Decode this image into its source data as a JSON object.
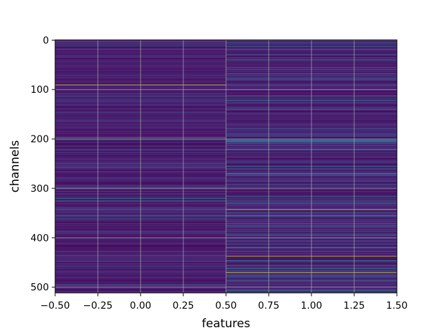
{
  "chart_data": {
    "type": "heatmap",
    "title": "",
    "xlabel": "features",
    "ylabel": "channels",
    "xlim": [
      -0.5,
      1.5
    ],
    "ylim": [
      511.5,
      -0.5
    ],
    "rows": 512,
    "columns": 2,
    "colormap": "viridis",
    "grid": true,
    "x_ticks": [
      "−0.50",
      "−0.25",
      "0.00",
      "0.25",
      "0.50",
      "0.75",
      "1.00",
      "1.25",
      "1.50"
    ],
    "x_tick_values": [
      -0.5,
      -0.25,
      0.0,
      0.25,
      0.5,
      0.75,
      1.0,
      1.25,
      1.5
    ],
    "y_ticks": [
      "0",
      "100",
      "200",
      "300",
      "400",
      "500"
    ],
    "y_tick_values": [
      0,
      100,
      200,
      300,
      400,
      500
    ],
    "highlights": [
      {
        "column": 0,
        "channel": 91,
        "value": 0.95
      },
      {
        "column": 0,
        "channel": 198,
        "value": 0.55
      },
      {
        "column": 0,
        "channel": 320,
        "value": 0.45
      },
      {
        "column": 0,
        "channel": 325,
        "value": 0.4
      },
      {
        "column": 1,
        "channel": 40,
        "value": 0.5
      },
      {
        "column": 1,
        "channel": 68,
        "value": 0.45
      },
      {
        "column": 1,
        "channel": 113,
        "value": 0.5
      },
      {
        "column": 1,
        "channel": 140,
        "value": 0.45
      },
      {
        "column": 1,
        "channel": 205,
        "value": 0.55
      },
      {
        "column": 1,
        "channel": 222,
        "value": 0.45
      },
      {
        "column": 1,
        "channel": 270,
        "value": 0.45
      },
      {
        "column": 1,
        "channel": 343,
        "value": 0.95
      },
      {
        "column": 1,
        "channel": 350,
        "value": 0.45
      },
      {
        "column": 1,
        "channel": 376,
        "value": 0.45
      },
      {
        "column": 1,
        "channel": 420,
        "value": 0.5
      },
      {
        "column": 1,
        "channel": 437,
        "value": 0.95
      },
      {
        "column": 1,
        "channel": 447,
        "value": 0.45
      },
      {
        "column": 1,
        "channel": 470,
        "value": 0.95
      }
    ]
  }
}
